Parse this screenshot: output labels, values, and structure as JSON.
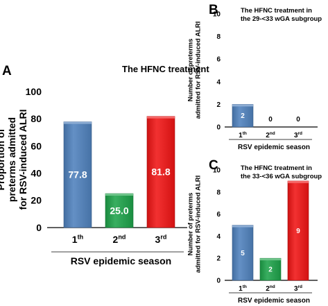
{
  "chart_data": [
    {
      "panel": "A",
      "type": "bar",
      "title": "The HFNC treatment",
      "ylabel": "Proportion of preterms admitted for RSV-induced ALRI",
      "xlabel": "RSV epidemic season",
      "categories": [
        {
          "base": "1",
          "sup": "th"
        },
        {
          "base": "2",
          "sup": "nd"
        },
        {
          "base": "3",
          "sup": "rd"
        }
      ],
      "values": [
        77.8,
        25.0,
        81.8
      ],
      "value_labels": [
        "77.8",
        "25.0",
        "81.8"
      ],
      "colors": [
        "#4f81bd",
        "#1ea34a",
        "#f01515"
      ],
      "ylim": [
        0,
        100
      ],
      "yticks": [
        0,
        20,
        40,
        60,
        80,
        100
      ],
      "grid": false
    },
    {
      "panel": "B",
      "type": "bar",
      "title": "The HFNC treatment in the 29-<33 wGA subgroup",
      "ylabel": "Number of preterms admitted for RSV-induced ALRI",
      "xlabel": "RSV epidemic season",
      "categories": [
        {
          "base": "1",
          "sup": "th"
        },
        {
          "base": "2",
          "sup": "nd"
        },
        {
          "base": "3",
          "sup": "rd"
        }
      ],
      "values": [
        2,
        0,
        0
      ],
      "value_labels": [
        "2",
        "0",
        "0"
      ],
      "colors": [
        "#4f81bd",
        "#1ea34a",
        "#f01515"
      ],
      "ylim": [
        0,
        10
      ],
      "yticks": [
        0,
        2,
        4,
        6,
        8,
        10
      ],
      "grid": false
    },
    {
      "panel": "C",
      "type": "bar",
      "title": "The HFNC treatment in the 33-<36 wGA subgroup",
      "ylabel": "Number of preterms admitted for RSV-induced ALRI",
      "xlabel": "RSV epidemic season",
      "categories": [
        {
          "base": "1",
          "sup": "th"
        },
        {
          "base": "2",
          "sup": "nd"
        },
        {
          "base": "3",
          "sup": "rd"
        }
      ],
      "values": [
        5,
        2,
        9
      ],
      "value_labels": [
        "5",
        "2",
        "9"
      ],
      "colors": [
        "#4f81bd",
        "#1ea34a",
        "#f01515"
      ],
      "ylim": [
        0,
        10
      ],
      "yticks": [
        0,
        2,
        4,
        6,
        8,
        10
      ],
      "grid": false
    }
  ]
}
